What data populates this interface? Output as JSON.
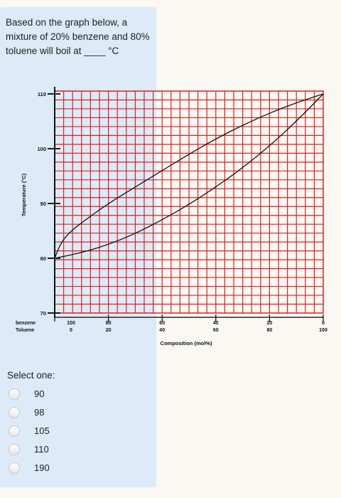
{
  "question": {
    "text": "Based on the graph below, a mixture of 20% benzene and 80% toluene will boil at ____ °C"
  },
  "chart_data": {
    "type": "line",
    "title": "",
    "ylabel": "Temperature (°C)",
    "xlabel": "Composition (mol%)",
    "ylim": [
      70,
      110
    ],
    "xlim": [
      0,
      100
    ],
    "yticks": [
      "70",
      "80",
      "90",
      "100",
      "110"
    ],
    "yticks_values": [
      70,
      80,
      90,
      100,
      110
    ],
    "benzene_label": "benzene",
    "toluene_label": "Toluene",
    "benzene_ticks": [
      "100",
      "80",
      "60",
      "40",
      "20",
      "0"
    ],
    "toluene_ticks": [
      "0",
      "20",
      "40",
      "60",
      "80",
      "100"
    ],
    "x_tick_values": [
      0,
      20,
      40,
      60,
      80,
      100
    ],
    "grid": true,
    "grid_color": "#e02020",
    "series": [
      {
        "x": [
          0,
          10,
          20,
          30,
          40,
          50,
          60,
          70,
          80,
          90,
          100
        ],
        "y": [
          80,
          81,
          82.5,
          84.5,
          87,
          89.8,
          93,
          96.5,
          100.5,
          105,
          110
        ]
      },
      {
        "x": [
          0,
          2,
          5,
          10,
          20,
          30,
          40,
          50,
          60,
          70,
          80,
          90,
          100
        ],
        "y": [
          80,
          82.5,
          84.5,
          86.5,
          90,
          93,
          96,
          99,
          101.8,
          104.3,
          106.5,
          108.4,
          110
        ]
      }
    ]
  },
  "select_label": "Select one:",
  "options": [
    {
      "label": "90"
    },
    {
      "label": "98"
    },
    {
      "label": "105"
    },
    {
      "label": "110"
    },
    {
      "label": "190"
    }
  ]
}
